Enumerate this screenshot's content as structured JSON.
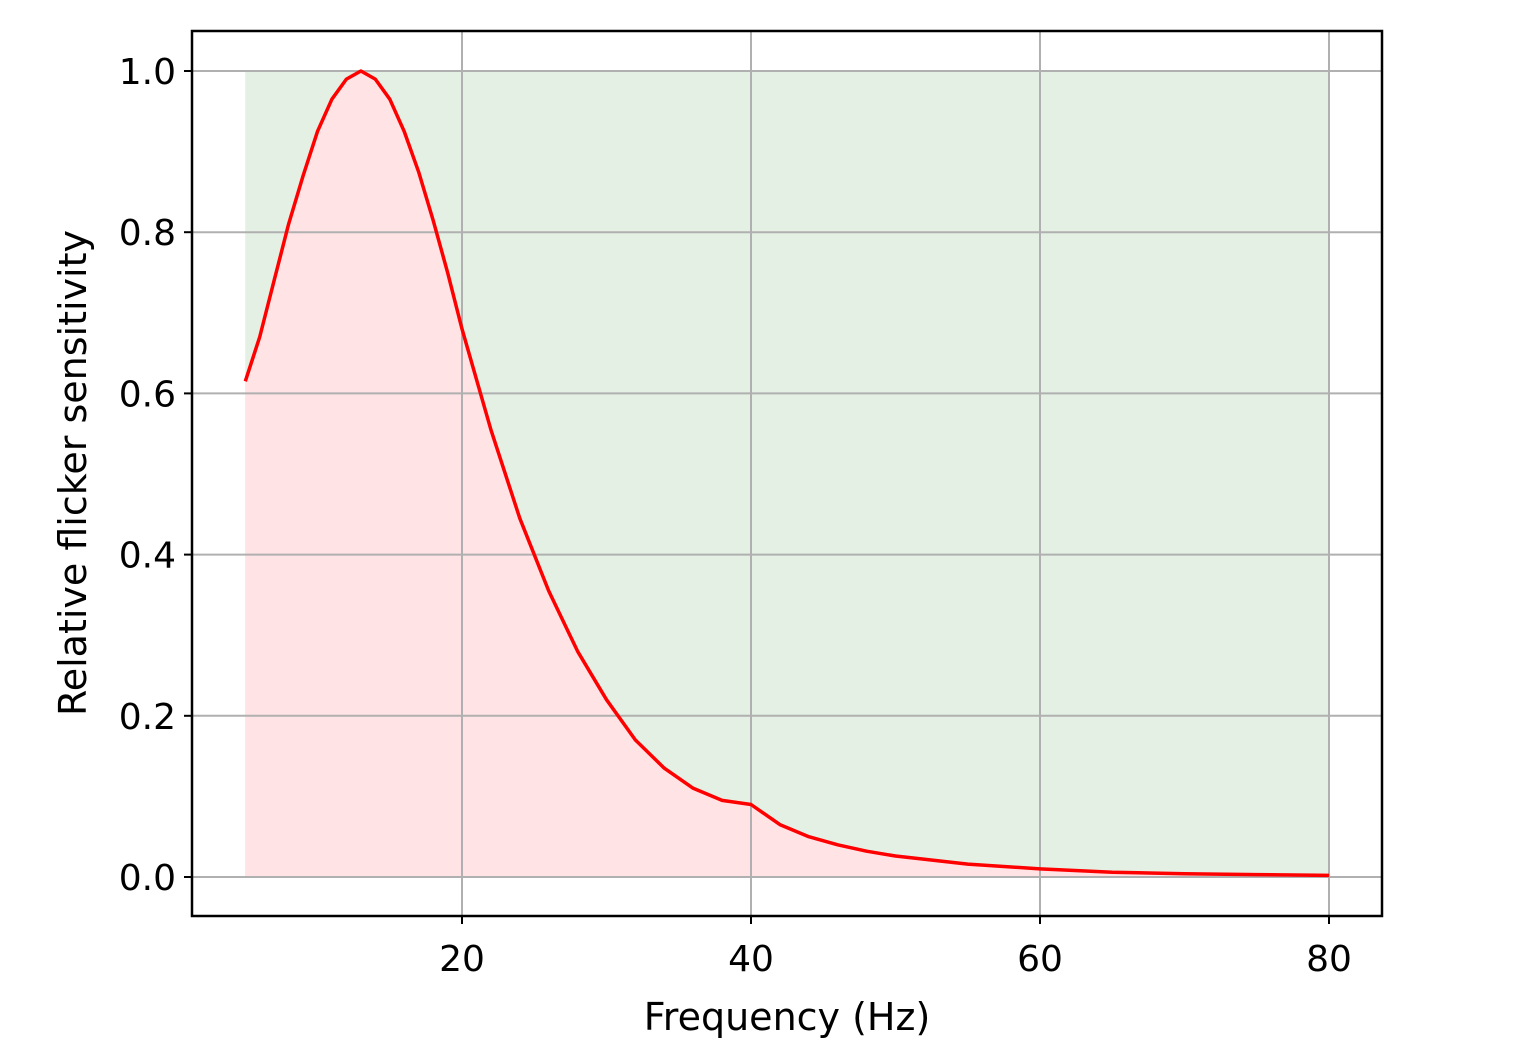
{
  "chart_data": {
    "type": "area",
    "title": "",
    "xlabel": "Frequency (Hz)",
    "ylabel": "Relative flicker sensitivity",
    "xlim": [
      2,
      84
    ],
    "ylim": [
      -0.05,
      1.05
    ],
    "grid": true,
    "legend": null,
    "x_ticks": [
      20,
      40,
      60,
      80
    ],
    "x_tick_labels": [
      "20",
      "40",
      "60",
      "80"
    ],
    "y_ticks": [
      0.0,
      0.2,
      0.4,
      0.6,
      0.8,
      1.0
    ],
    "y_tick_labels": [
      "0.0",
      "0.2",
      "0.4",
      "0.6",
      "0.8",
      "1.0"
    ],
    "colors": {
      "line": "#ff0000",
      "fill_under_curve": "#ffe3e5",
      "fill_background_region": "#e4f0e4",
      "grid": "#b0b0b0"
    },
    "background_region": {
      "x_start": 5,
      "x_end": 80,
      "y_start": 0,
      "y_end": 1.0
    },
    "series": [
      {
        "name": "Relative flicker sensitivity",
        "x": [
          5,
          6,
          7,
          8,
          9,
          10,
          11,
          12,
          13,
          14,
          15,
          16,
          17,
          18,
          19,
          20,
          22,
          24,
          26,
          28,
          30,
          32,
          34,
          36,
          38,
          40,
          42,
          44,
          46,
          48,
          50,
          55,
          60,
          65,
          70,
          75,
          80
        ],
        "values": [
          0.615,
          0.67,
          0.74,
          0.81,
          0.87,
          0.925,
          0.965,
          0.99,
          1.0,
          0.99,
          0.965,
          0.925,
          0.875,
          0.815,
          0.75,
          0.68,
          0.555,
          0.445,
          0.355,
          0.28,
          0.22,
          0.17,
          0.135,
          0.11,
          0.095,
          0.09,
          0.065,
          0.05,
          0.04,
          0.032,
          0.026,
          0.016,
          0.01,
          0.006,
          0.004,
          0.003,
          0.002
        ]
      }
    ]
  }
}
